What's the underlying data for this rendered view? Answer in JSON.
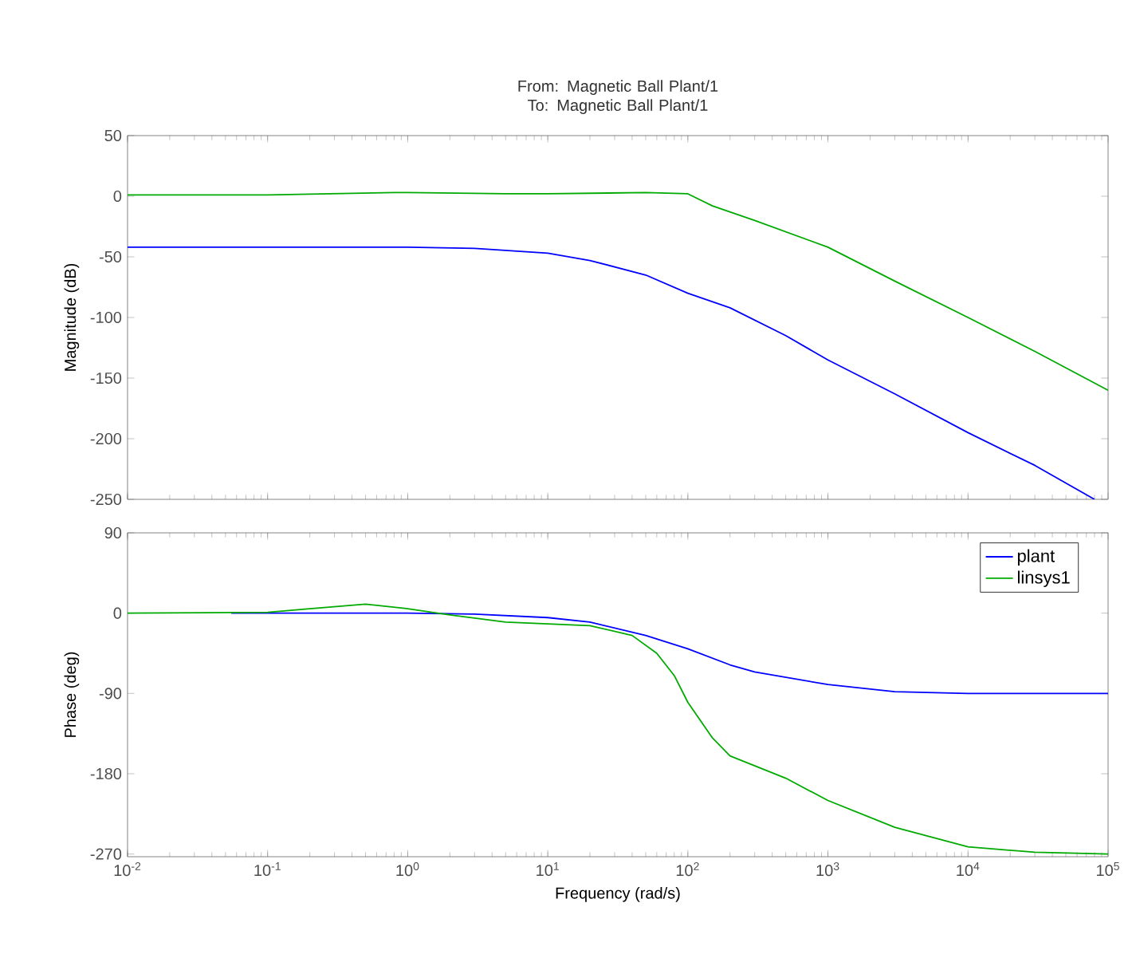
{
  "chart_data": [
    {
      "type": "line",
      "title": "From: Magnetic Ball Plant/1  To: Magnetic Ball Plant/1",
      "ylabel": "Magnitude (dB)",
      "log": "x",
      "grid": false,
      "tick_labels": "y",
      "xlim": [
        0.01,
        100000
      ],
      "xticks": [
        0.01,
        0.1,
        1,
        10,
        100,
        1000,
        10000,
        100000
      ],
      "ylim": [
        -250,
        50
      ],
      "yticks": [
        -250,
        -200,
        -150,
        -100,
        -50,
        0,
        50
      ],
      "series": [
        {
          "color": "#0000ff",
          "x": [
            0.01,
            0.1,
            1,
            3,
            10,
            20,
            50,
            100,
            200,
            500,
            1000,
            3000,
            10000,
            30000,
            80000
          ],
          "values": [
            -42,
            -42,
            -42,
            -43,
            -47,
            -53,
            -65,
            -80,
            -92,
            -115,
            -135,
            -163,
            -195,
            -222,
            -250
          ]
        },
        {
          "color": "#00aa00",
          "x": [
            0.01,
            0.1,
            0.8,
            1,
            5,
            10,
            50,
            100,
            150,
            300,
            1000,
            3000,
            10000,
            30000,
            100000
          ],
          "values": [
            1,
            1,
            3,
            3,
            2,
            2,
            3,
            2,
            -8,
            -20,
            -42,
            -70,
            -100,
            -128,
            -160
          ]
        }
      ]
    },
    {
      "type": "line",
      "xlabel": "Frequency  (rad/s)",
      "ylabel": "Phase (deg)",
      "log": "x",
      "grid": false,
      "legend": "top right",
      "xlim": [
        0.01,
        100000
      ],
      "xticks": [
        {
          "value": 0.01,
          "label": "10$^{-2}$"
        },
        {
          "value": 0.1,
          "label": "10$^{-1}$"
        },
        {
          "value": 1,
          "label": "10$^{0}$"
        },
        {
          "value": 10,
          "label": "10$^{1}$"
        },
        {
          "value": 100,
          "label": "10$^{2}$"
        },
        {
          "value": 1000,
          "label": "10$^{3}$"
        },
        {
          "value": 10000,
          "label": "10$^{4}$"
        },
        {
          "value": 100000,
          "label": "10$^{5}$"
        }
      ],
      "ylim": [
        -273,
        90
      ],
      "yticks": [
        -270,
        -180,
        -90,
        0,
        90
      ],
      "series": [
        {
          "name": "plant",
          "color": "#0000ff",
          "x": [
            0.055,
            1,
            3,
            10,
            20,
            50,
            100,
            200,
            300,
            1000,
            3000,
            10000,
            100000
          ],
          "values": [
            0,
            0,
            -1,
            -5,
            -10,
            -25,
            -40,
            -58,
            -66,
            -80,
            -88,
            -90,
            -90
          ]
        },
        {
          "name": "linsys1",
          "color": "#00aa00",
          "x": [
            0.01,
            0.1,
            0.2,
            0.5,
            1,
            2,
            5,
            20,
            40,
            60,
            80,
            100,
            150,
            200,
            500,
            1000,
            3000,
            10000,
            30000,
            100000
          ],
          "values": [
            0,
            1,
            5,
            10,
            5,
            -2,
            -10,
            -14,
            -25,
            -45,
            -70,
            -100,
            -140,
            -160,
            -185,
            -210,
            -240,
            -262,
            -268,
            -270
          ]
        }
      ]
    }
  ]
}
